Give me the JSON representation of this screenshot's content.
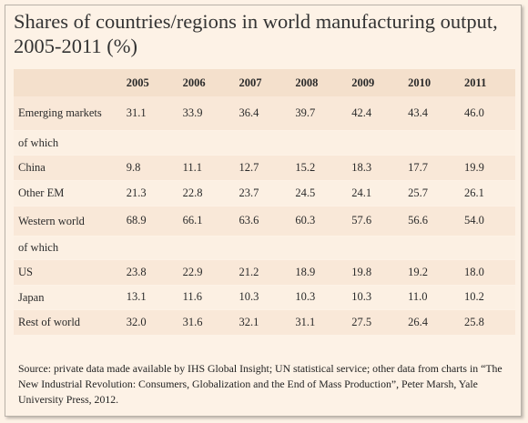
{
  "chart_data": {
    "type": "table",
    "title": "Shares of countries/regions in world manufacturing output, 2005-2011 (%)",
    "columns": [
      "2005",
      "2006",
      "2007",
      "2008",
      "2009",
      "2010",
      "2011"
    ],
    "rows": [
      {
        "label": "Emerging markets",
        "values": [
          "31.1",
          "33.9",
          "36.4",
          "39.7",
          "42.4",
          "43.4",
          "46.0"
        ]
      },
      {
        "label": "of which",
        "values": [
          "",
          "",
          "",
          "",
          "",
          "",
          ""
        ]
      },
      {
        "label": "China",
        "values": [
          "9.8",
          "11.1",
          "12.7",
          "15.2",
          "18.3",
          "17.7",
          "19.9"
        ]
      },
      {
        "label": "Other EM",
        "values": [
          "21.3",
          "22.8",
          "23.7",
          "24.5",
          "24.1",
          "25.7",
          "26.1"
        ]
      },
      {
        "label": "Western world",
        "values": [
          "68.9",
          "66.1",
          "63.6",
          "60.3",
          "57.6",
          "56.6",
          "54.0"
        ]
      },
      {
        "label": "of which",
        "values": [
          "",
          "",
          "",
          "",
          "",
          "",
          ""
        ]
      },
      {
        "label": "US",
        "values": [
          "23.8",
          "22.9",
          "21.2",
          "18.9",
          "19.8",
          "19.2",
          "18.0"
        ]
      },
      {
        "label": "Japan",
        "values": [
          "13.1",
          "11.6",
          "10.3",
          "10.3",
          "10.3",
          "11.0",
          "10.2"
        ]
      },
      {
        "label": "Rest of world",
        "values": [
          "32.0",
          "31.6",
          "32.1",
          "31.1",
          "27.5",
          "26.4",
          "25.8"
        ]
      }
    ],
    "source": "Source: private data made available by IHS Global Insight; UN statistical service; other data from charts in “The New Industrial Revolution: Consumers, Globalization and the End of Mass Production”, Peter Marsh, Yale University Press, 2012."
  }
}
